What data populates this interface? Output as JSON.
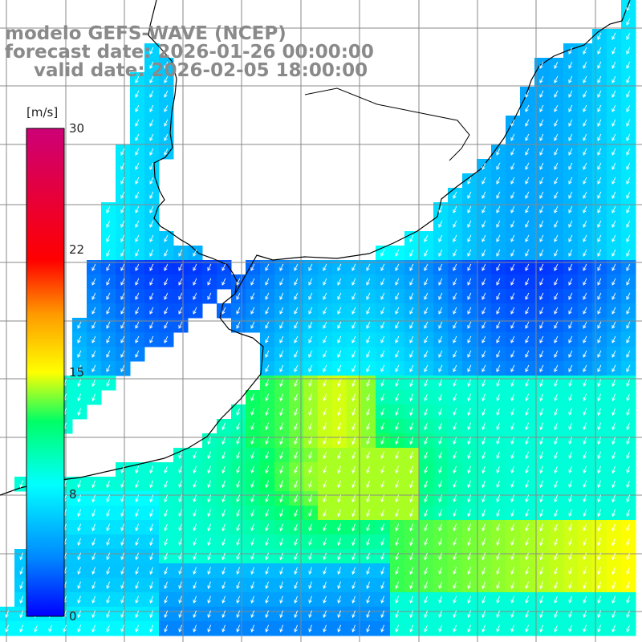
{
  "title": {
    "model": "modelo GEFS-WAVE (NCEP)",
    "forecast": "forecast date: 2026-01-26 00:00:00",
    "valid": "valid date: 2026-02-05 18:00:00"
  },
  "colorbar": {
    "units": "[m/s]",
    "ticks": [
      "30",
      "22",
      "15",
      "8",
      "0"
    ],
    "tick_values": [
      30,
      22,
      15,
      8,
      0
    ],
    "min": 0,
    "max": 30,
    "colors": [
      "#0000ff",
      "#00aaff",
      "#00ffff",
      "#00ff00",
      "#ffff00",
      "#ff8000",
      "#ff0000",
      "#cc0066"
    ]
  },
  "land_color": "#ffffff",
  "coast_color": "#000000",
  "grid_color": "#888888",
  "arrow_color": "#ffffff"
}
